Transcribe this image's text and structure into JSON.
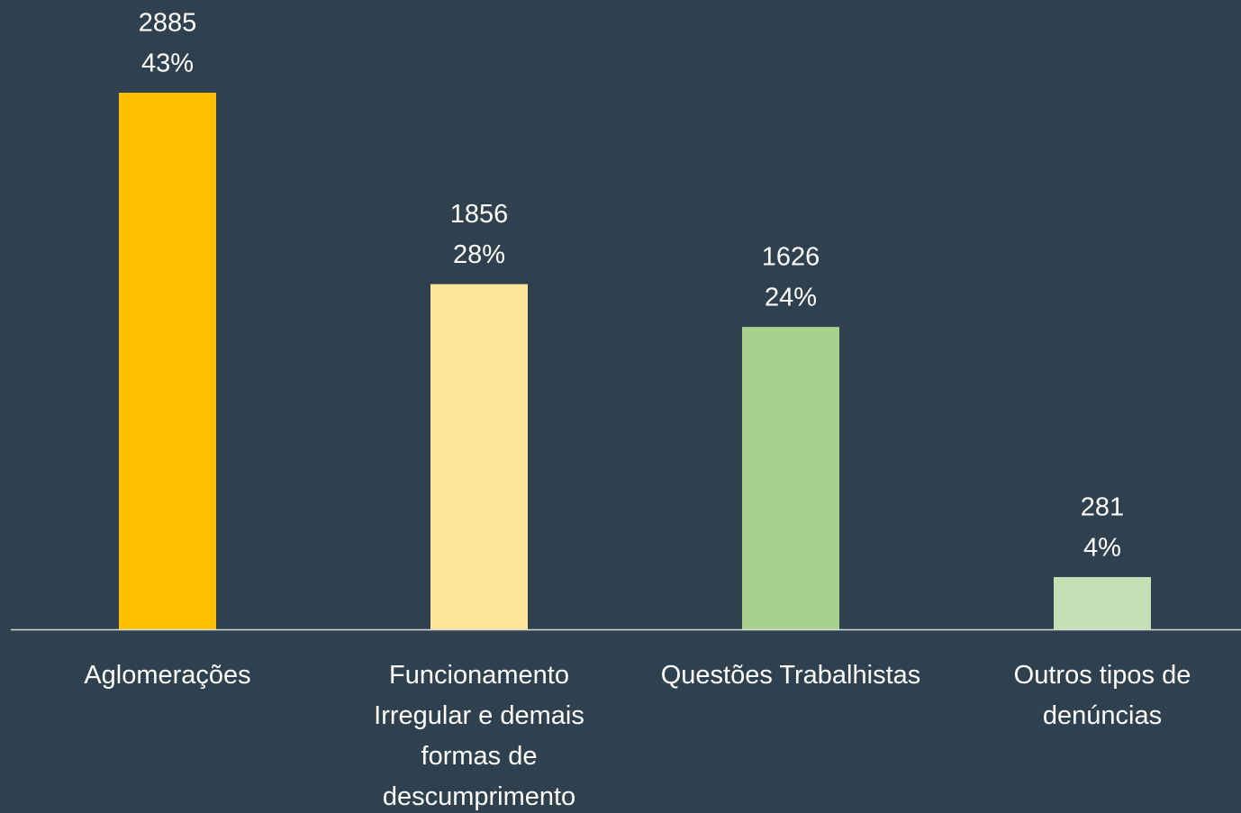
{
  "chart_data": {
    "type": "bar",
    "categories": [
      "Aglomerações",
      "Funcionamento Irregular e demais formas de descumprimento",
      "Questões Trabalhistas",
      "Outros tipos de denúncias"
    ],
    "values": [
      2885,
      1856,
      1626,
      281
    ],
    "value_labels": [
      [
        "2885",
        "43%"
      ],
      [
        "1856",
        "28%"
      ],
      [
        "1626",
        "24%"
      ],
      [
        "281",
        "4%"
      ]
    ],
    "colors": [
      "#ffc000",
      "#ffe699",
      "#a9d18e",
      "#c5e0b4"
    ]
  }
}
